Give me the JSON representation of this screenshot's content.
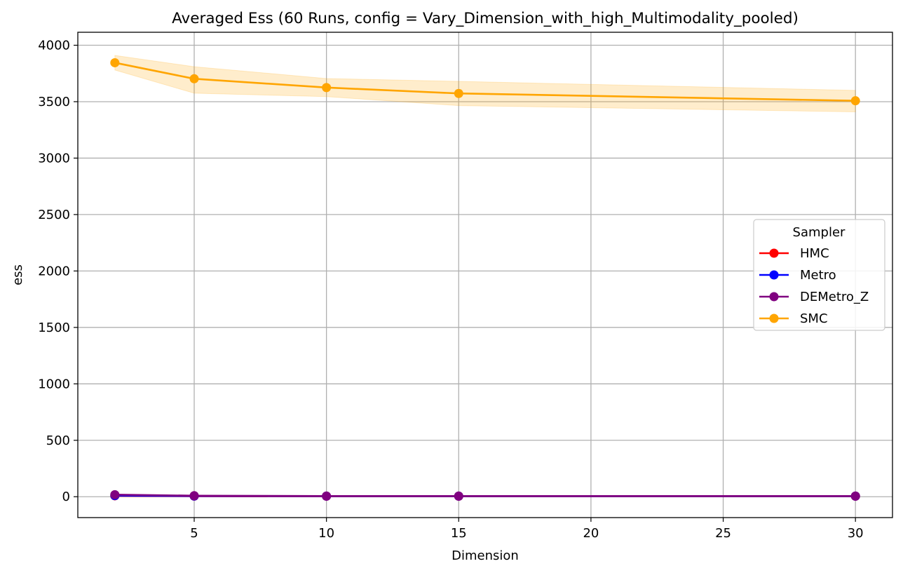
{
  "chart_data": {
    "type": "line",
    "title": "Averaged Ess (60 Runs, config = Vary_Dimension_with_high_Multimodality_pooled)",
    "xlabel": "Dimension",
    "ylabel": "ess",
    "x": [
      2,
      5,
      10,
      15,
      30
    ],
    "xlim": [
      0.6,
      31.4
    ],
    "ylim": [
      -185,
      4115
    ],
    "xticks": [
      5,
      10,
      15,
      20,
      25,
      30
    ],
    "yticks": [
      0,
      500,
      1000,
      1500,
      2000,
      2500,
      3000,
      3500,
      4000
    ],
    "grid": true,
    "legend": {
      "title": "Sampler",
      "placement": "center-right"
    },
    "series": [
      {
        "name": "HMC",
        "color": "#ff0000",
        "values": [
          8,
          5,
          4,
          4,
          4
        ]
      },
      {
        "name": "Metro",
        "color": "#0000ff",
        "values": [
          10,
          6,
          5,
          5,
          5
        ]
      },
      {
        "name": "DEMetro_Z",
        "color": "#800080",
        "values": [
          18,
          9,
          6,
          6,
          6
        ]
      },
      {
        "name": "SMC",
        "color": "#ffa500",
        "values": [
          3845,
          3703,
          3625,
          3573,
          3508
        ],
        "band_lower": [
          3780,
          3575,
          3545,
          3465,
          3410
        ],
        "band_upper": [
          3910,
          3810,
          3705,
          3680,
          3600
        ]
      }
    ]
  }
}
